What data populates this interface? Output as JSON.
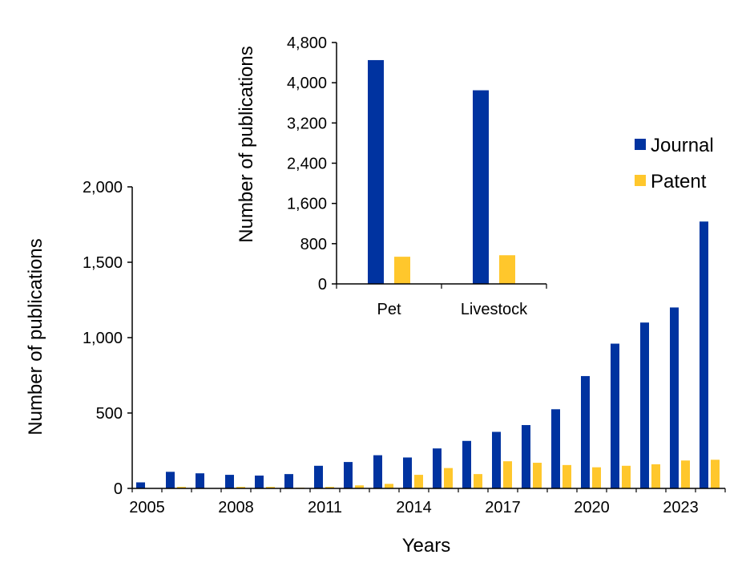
{
  "colors": {
    "journal": "#0033A0",
    "patent": "#FFC72C"
  },
  "legend": {
    "position": "top-right"
  },
  "chart_data": [
    {
      "type": "bar",
      "categories": [
        "2005",
        "2006",
        "2007",
        "2008",
        "2009",
        "2010",
        "2011",
        "2012",
        "2013",
        "2014",
        "2015",
        "2016",
        "2017",
        "2018",
        "2019",
        "2020",
        "2021",
        "2022",
        "2023",
        "2024"
      ],
      "tick_labels": [
        "2005",
        "2008",
        "2011",
        "2014",
        "2017",
        "2020",
        "2023"
      ],
      "series": [
        {
          "name": "Journal",
          "values": [
            40,
            110,
            100,
            90,
            85,
            95,
            150,
            175,
            220,
            205,
            265,
            315,
            375,
            420,
            525,
            745,
            960,
            1100,
            1200,
            1770
          ]
        },
        {
          "name": "Patent",
          "values": [
            0,
            10,
            0,
            10,
            10,
            5,
            10,
            20,
            30,
            90,
            135,
            95,
            180,
            170,
            155,
            140,
            150,
            160,
            185,
            190
          ]
        }
      ],
      "xlabel": "Years",
      "ylabel": "Number of publications",
      "ylim": [
        0,
        2000
      ],
      "yticks": [
        "0",
        "500",
        "1,000",
        "1,500",
        "2,000"
      ],
      "grid": false
    },
    {
      "type": "bar",
      "categories": [
        "Pet",
        "Livestock"
      ],
      "series": [
        {
          "name": "Journal",
          "values": [
            4450,
            3850
          ]
        },
        {
          "name": "Patent",
          "values": [
            540,
            570
          ]
        }
      ],
      "xlabel": "",
      "ylabel": "Number of publications",
      "ylim": [
        0,
        4800
      ],
      "yticks": [
        "0",
        "800",
        "1,600",
        "2,400",
        "3,200",
        "4,000",
        "4,800"
      ],
      "grid": false
    }
  ]
}
